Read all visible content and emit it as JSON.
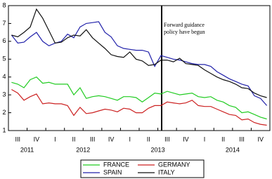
{
  "chart_data": {
    "type": "line",
    "categories": [
      null,
      "III",
      null,
      null,
      "IV",
      null,
      null,
      "I",
      null,
      null,
      "II",
      null,
      null,
      "III",
      null,
      null,
      "IV",
      null,
      null,
      "I",
      null,
      null,
      "II",
      null,
      null,
      "III",
      null,
      null,
      "IV",
      null,
      null,
      "I",
      null,
      null,
      "II",
      null,
      null,
      "III",
      null,
      null,
      "IV",
      null
    ],
    "year_labels": [
      "2011",
      "2012",
      "2013",
      "2014"
    ],
    "series": [
      {
        "name": "FRANCE",
        "color": "#22cc22",
        "values": [
          3.7,
          3.6,
          3.4,
          3.85,
          4.0,
          3.65,
          3.7,
          3.6,
          3.6,
          3.6,
          3.0,
          3.4,
          2.8,
          2.9,
          2.95,
          2.9,
          2.8,
          2.7,
          2.9,
          2.9,
          2.85,
          2.6,
          2.85,
          3.1,
          3.05,
          3.2,
          3.1,
          3.0,
          3.05,
          3.1,
          2.9,
          2.85,
          2.9,
          2.7,
          2.6,
          2.4,
          2.3,
          2.0,
          2.05,
          1.9,
          1.75,
          1.65
        ]
      },
      {
        "name": "GERMANY",
        "color": "#cc2222",
        "values": [
          3.3,
          3.1,
          2.7,
          2.9,
          3.05,
          2.5,
          2.55,
          2.5,
          2.5,
          2.4,
          1.85,
          2.3,
          1.95,
          2.0,
          2.1,
          2.2,
          2.15,
          2.05,
          2.25,
          2.2,
          2.0,
          2.0,
          2.25,
          2.4,
          2.4,
          2.6,
          2.55,
          2.5,
          2.55,
          2.7,
          2.4,
          2.35,
          2.35,
          2.2,
          2.05,
          1.9,
          1.85,
          1.6,
          1.65,
          1.45,
          1.35,
          1.3
        ]
      },
      {
        "name": "SPAIN",
        "color": "#2222aa",
        "values": [
          6.35,
          5.9,
          5.95,
          6.25,
          6.5,
          6.0,
          5.75,
          5.9,
          6.0,
          6.4,
          6.2,
          6.8,
          7.0,
          7.05,
          7.1,
          6.5,
          6.25,
          5.75,
          5.6,
          5.55,
          5.5,
          5.5,
          5.4,
          4.6,
          5.2,
          5.1,
          5.0,
          4.95,
          4.85,
          4.75,
          4.7,
          4.7,
          4.6,
          4.3,
          4.1,
          3.9,
          3.75,
          3.6,
          3.5,
          2.95,
          2.8,
          2.4
        ]
      },
      {
        "name": "ITALY",
        "color": "#111111",
        "values": [
          6.35,
          6.25,
          6.5,
          6.8,
          7.8,
          7.3,
          6.6,
          5.9,
          5.95,
          6.2,
          6.35,
          6.3,
          6.65,
          6.2,
          5.9,
          5.6,
          5.25,
          5.15,
          5.1,
          5.4,
          5.0,
          4.9,
          4.65,
          4.7,
          4.95,
          4.95,
          4.85,
          5.05,
          4.75,
          4.7,
          4.65,
          4.4,
          4.2,
          4.0,
          3.85,
          3.75,
          3.6,
          3.4,
          3.35,
          3.1,
          2.95,
          2.85
        ]
      }
    ],
    "annotation": [
      "Forward guidance",
      "policy have begun"
    ],
    "ylim": [
      1,
      8
    ],
    "yticks": [
      1,
      2,
      3,
      4,
      5,
      6,
      7,
      8
    ]
  }
}
